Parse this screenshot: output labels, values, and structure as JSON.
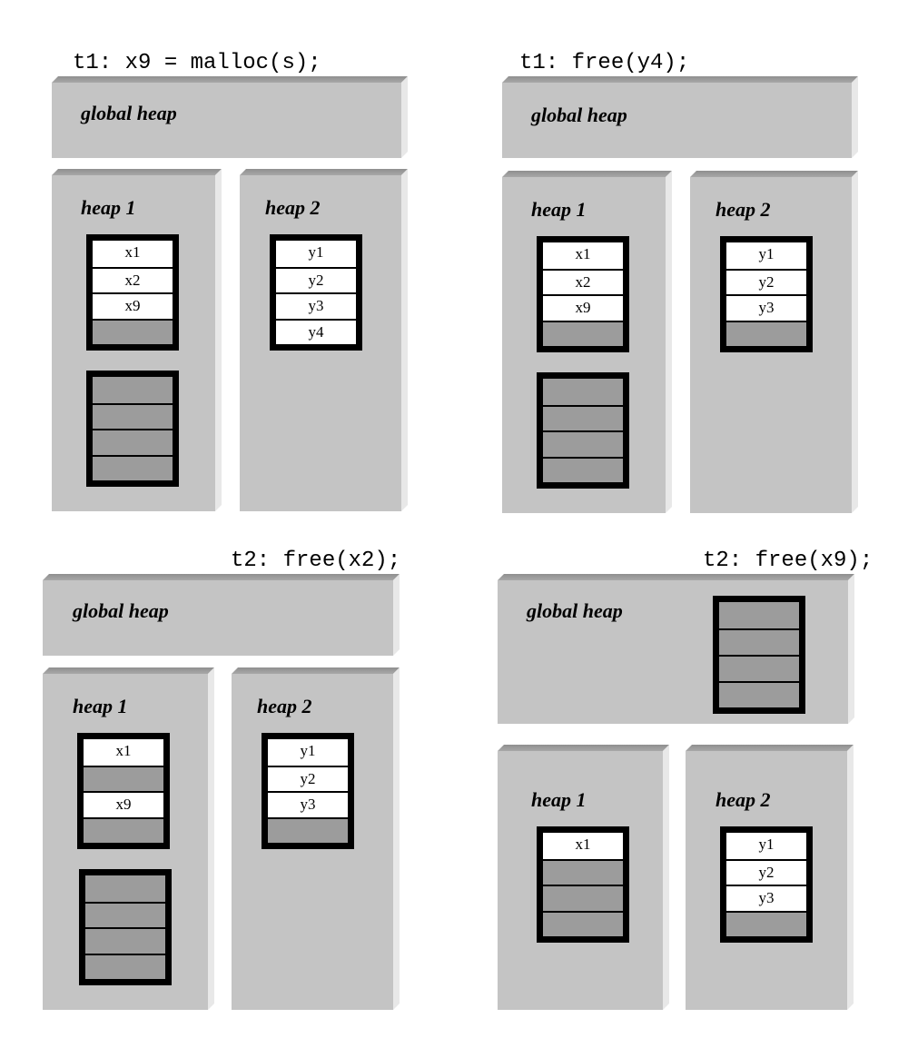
{
  "panels": [
    {
      "caption": "t1: x9 = malloc(s);",
      "global_label": "global heap",
      "heap1_label": "heap 1",
      "heap2_label": "heap 2",
      "heap1_superblocks": [
        [
          {
            "label": "x1",
            "state": "used"
          },
          {
            "label": "x2",
            "state": "used"
          },
          {
            "label": "x9",
            "state": "used"
          },
          {
            "label": "",
            "state": "free"
          }
        ],
        [
          {
            "label": "",
            "state": "free"
          },
          {
            "label": "",
            "state": "free"
          },
          {
            "label": "",
            "state": "free"
          },
          {
            "label": "",
            "state": "free"
          }
        ]
      ],
      "heap2_superblocks": [
        [
          {
            "label": "y1",
            "state": "used"
          },
          {
            "label": "y2",
            "state": "used"
          },
          {
            "label": "y3",
            "state": "used"
          },
          {
            "label": "y4",
            "state": "used"
          }
        ]
      ],
      "global_superblocks": []
    },
    {
      "caption": "t1: free(y4);",
      "global_label": "global heap",
      "heap1_label": "heap 1",
      "heap2_label": "heap 2",
      "heap1_superblocks": [
        [
          {
            "label": "x1",
            "state": "used"
          },
          {
            "label": "x2",
            "state": "used"
          },
          {
            "label": "x9",
            "state": "used"
          },
          {
            "label": "",
            "state": "free"
          }
        ],
        [
          {
            "label": "",
            "state": "free"
          },
          {
            "label": "",
            "state": "free"
          },
          {
            "label": "",
            "state": "free"
          },
          {
            "label": "",
            "state": "free"
          }
        ]
      ],
      "heap2_superblocks": [
        [
          {
            "label": "y1",
            "state": "used"
          },
          {
            "label": "y2",
            "state": "used"
          },
          {
            "label": "y3",
            "state": "used"
          },
          {
            "label": "",
            "state": "free"
          }
        ]
      ],
      "global_superblocks": []
    },
    {
      "caption": "t2: free(x2);",
      "global_label": "global heap",
      "heap1_label": "heap 1",
      "heap2_label": "heap 2",
      "heap1_superblocks": [
        [
          {
            "label": "x1",
            "state": "used"
          },
          {
            "label": "",
            "state": "free"
          },
          {
            "label": "x9",
            "state": "used"
          },
          {
            "label": "",
            "state": "free"
          }
        ],
        [
          {
            "label": "",
            "state": "free"
          },
          {
            "label": "",
            "state": "free"
          },
          {
            "label": "",
            "state": "free"
          },
          {
            "label": "",
            "state": "free"
          }
        ]
      ],
      "heap2_superblocks": [
        [
          {
            "label": "y1",
            "state": "used"
          },
          {
            "label": "y2",
            "state": "used"
          },
          {
            "label": "y3",
            "state": "used"
          },
          {
            "label": "",
            "state": "free"
          }
        ]
      ],
      "global_superblocks": []
    },
    {
      "caption": "t2: free(x9);",
      "global_label": "global heap",
      "heap1_label": "heap 1",
      "heap2_label": "heap 2",
      "heap1_superblocks": [
        [
          {
            "label": "x1",
            "state": "used"
          },
          {
            "label": "",
            "state": "free"
          },
          {
            "label": "",
            "state": "free"
          },
          {
            "label": "",
            "state": "free"
          }
        ]
      ],
      "heap2_superblocks": [
        [
          {
            "label": "y1",
            "state": "used"
          },
          {
            "label": "y2",
            "state": "used"
          },
          {
            "label": "y3",
            "state": "used"
          },
          {
            "label": "",
            "state": "free"
          }
        ]
      ],
      "global_superblocks": [
        [
          {
            "label": "",
            "state": "free"
          },
          {
            "label": "",
            "state": "free"
          },
          {
            "label": "",
            "state": "free"
          },
          {
            "label": "",
            "state": "free"
          }
        ]
      ]
    }
  ]
}
